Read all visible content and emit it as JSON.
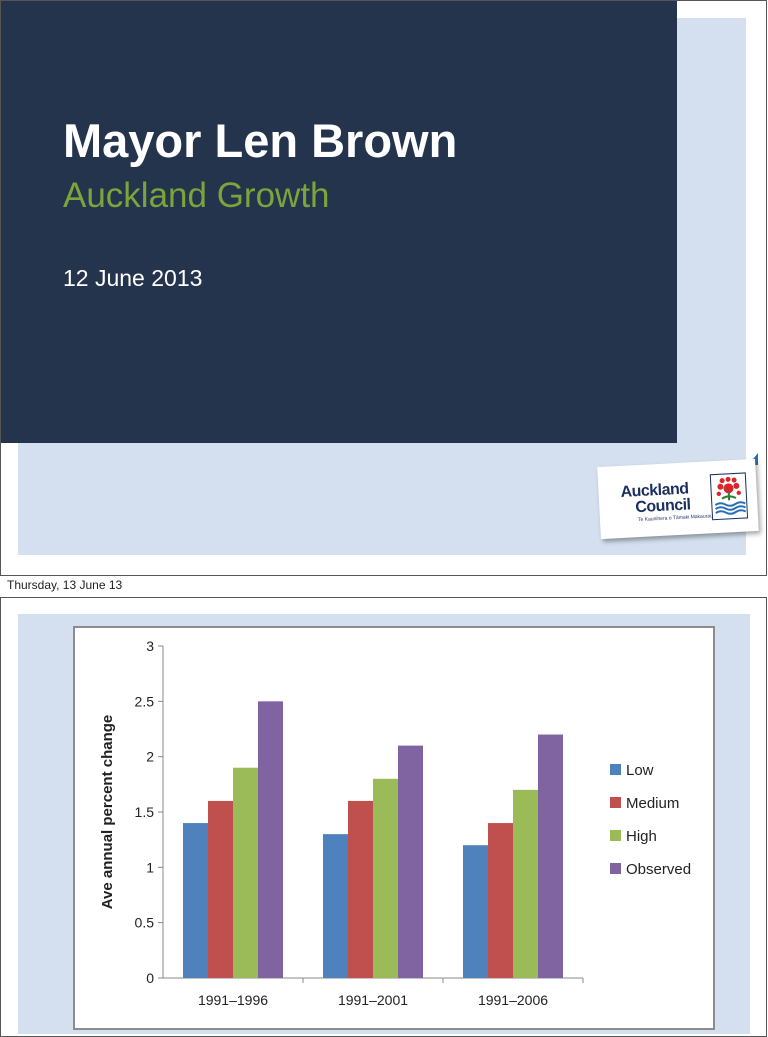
{
  "slide1": {
    "title": "Mayor Len Brown",
    "subtitle": "Auckland Growth",
    "date": "12 June 2013",
    "logo": {
      "line1": "Auckland",
      "line2": "Council",
      "tagline": "Te Kaunihera o Tāmaki Makaurau"
    },
    "colors": {
      "dark_panel": "#25344d",
      "light_panel": "#d4e0ef",
      "subtitle": "#7aa43c"
    }
  },
  "caption": "Thursday, 13 June 13",
  "chart_data": {
    "type": "bar",
    "categories": [
      "1991–1996",
      "1991–2001",
      "1991–2006"
    ],
    "series": [
      {
        "name": "Low",
        "values": [
          1.4,
          1.3,
          1.2
        ],
        "color": "#4f81bd"
      },
      {
        "name": "Medium",
        "values": [
          1.6,
          1.6,
          1.4
        ],
        "color": "#c0504d"
      },
      {
        "name": "High",
        "values": [
          1.9,
          1.8,
          1.7
        ],
        "color": "#9bbb59"
      },
      {
        "name": "Observed",
        "values": [
          2.5,
          2.1,
          2.2
        ],
        "color": "#8064a2"
      }
    ],
    "ylabel": "Ave annual percent change",
    "xlabel": "",
    "ylim": [
      0,
      3
    ],
    "yticks": [
      "0",
      "0.5",
      "1",
      "1.5",
      "2",
      "2.5",
      "3"
    ],
    "grid": false,
    "legend": "right"
  }
}
